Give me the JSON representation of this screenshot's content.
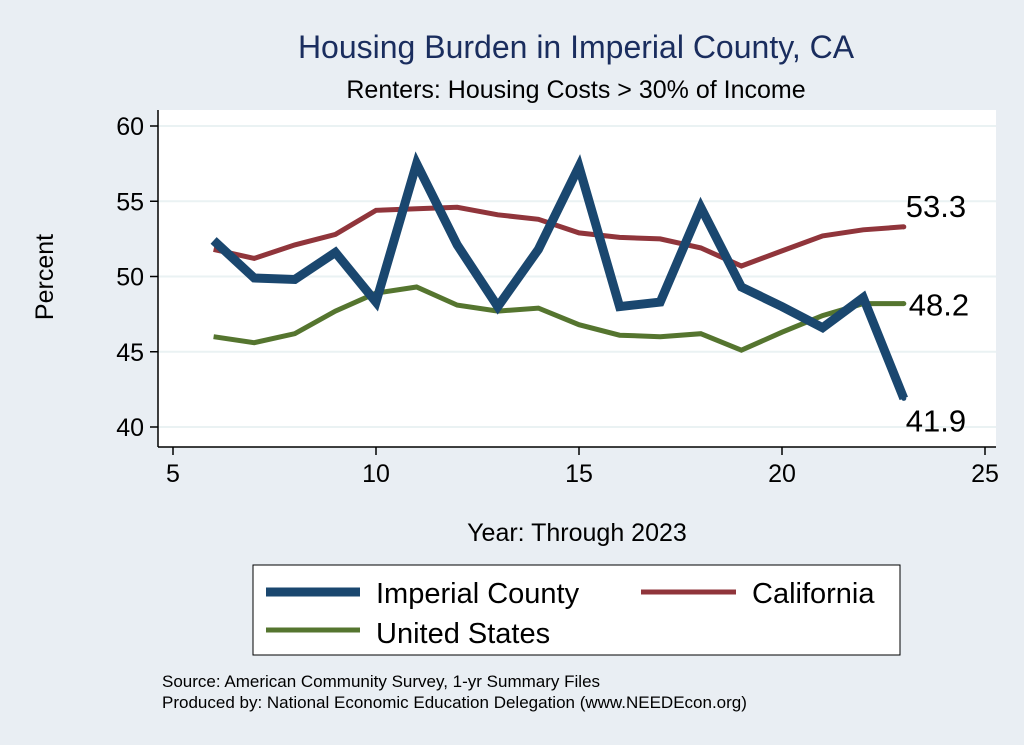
{
  "chart_data": {
    "type": "line",
    "title": "Housing Burden in Imperial County, CA",
    "subtitle": "Renters: Housing Costs > 30% of Income",
    "xlabel": "Year: Through 2023",
    "ylabel": "Percent",
    "xlim": [
      5,
      25
    ],
    "ylim": [
      40,
      60
    ],
    "xticks": [
      5,
      10,
      15,
      20,
      25
    ],
    "yticks": [
      40,
      45,
      50,
      55,
      60
    ],
    "grid": true,
    "legend_position": "bottom",
    "series": [
      {
        "name": "Imperial County",
        "color": "#1a476f",
        "x": [
          6,
          7,
          8,
          9,
          10,
          11,
          12,
          13,
          14,
          15,
          16,
          17,
          18,
          19,
          20,
          21,
          22,
          23
        ],
        "y": [
          52.4,
          49.9,
          49.8,
          51.6,
          48.3,
          57.5,
          52.1,
          48.0,
          51.8,
          57.3,
          48.0,
          48.3,
          54.6,
          49.3,
          48.0,
          46.6,
          48.6,
          41.9
        ],
        "end_label": "41.9"
      },
      {
        "name": "California",
        "color": "#90353b",
        "x": [
          6,
          7,
          8,
          9,
          10,
          11,
          12,
          13,
          14,
          15,
          16,
          17,
          18,
          19,
          20,
          21,
          22,
          23
        ],
        "y": [
          51.8,
          51.2,
          52.1,
          52.8,
          54.4,
          54.5,
          54.6,
          54.1,
          53.8,
          52.9,
          52.6,
          52.5,
          51.9,
          50.7,
          51.7,
          52.7,
          53.1,
          53.3
        ],
        "end_label": "53.3"
      },
      {
        "name": "United States",
        "color": "#55752f",
        "x": [
          6,
          7,
          8,
          9,
          10,
          11,
          12,
          13,
          14,
          15,
          16,
          17,
          18,
          19,
          20,
          21,
          22,
          23
        ],
        "y": [
          46.0,
          45.6,
          46.2,
          47.7,
          48.9,
          49.3,
          48.1,
          47.7,
          47.9,
          46.8,
          46.1,
          46.0,
          46.2,
          45.1,
          46.3,
          47.4,
          48.2,
          48.2
        ],
        "end_label": "48.2"
      }
    ],
    "notes": [
      "Source: American Community Survey, 1-yr Summary Files",
      "Produced by: National Economic Education Delegation (www.NEEDEcon.org)"
    ]
  }
}
